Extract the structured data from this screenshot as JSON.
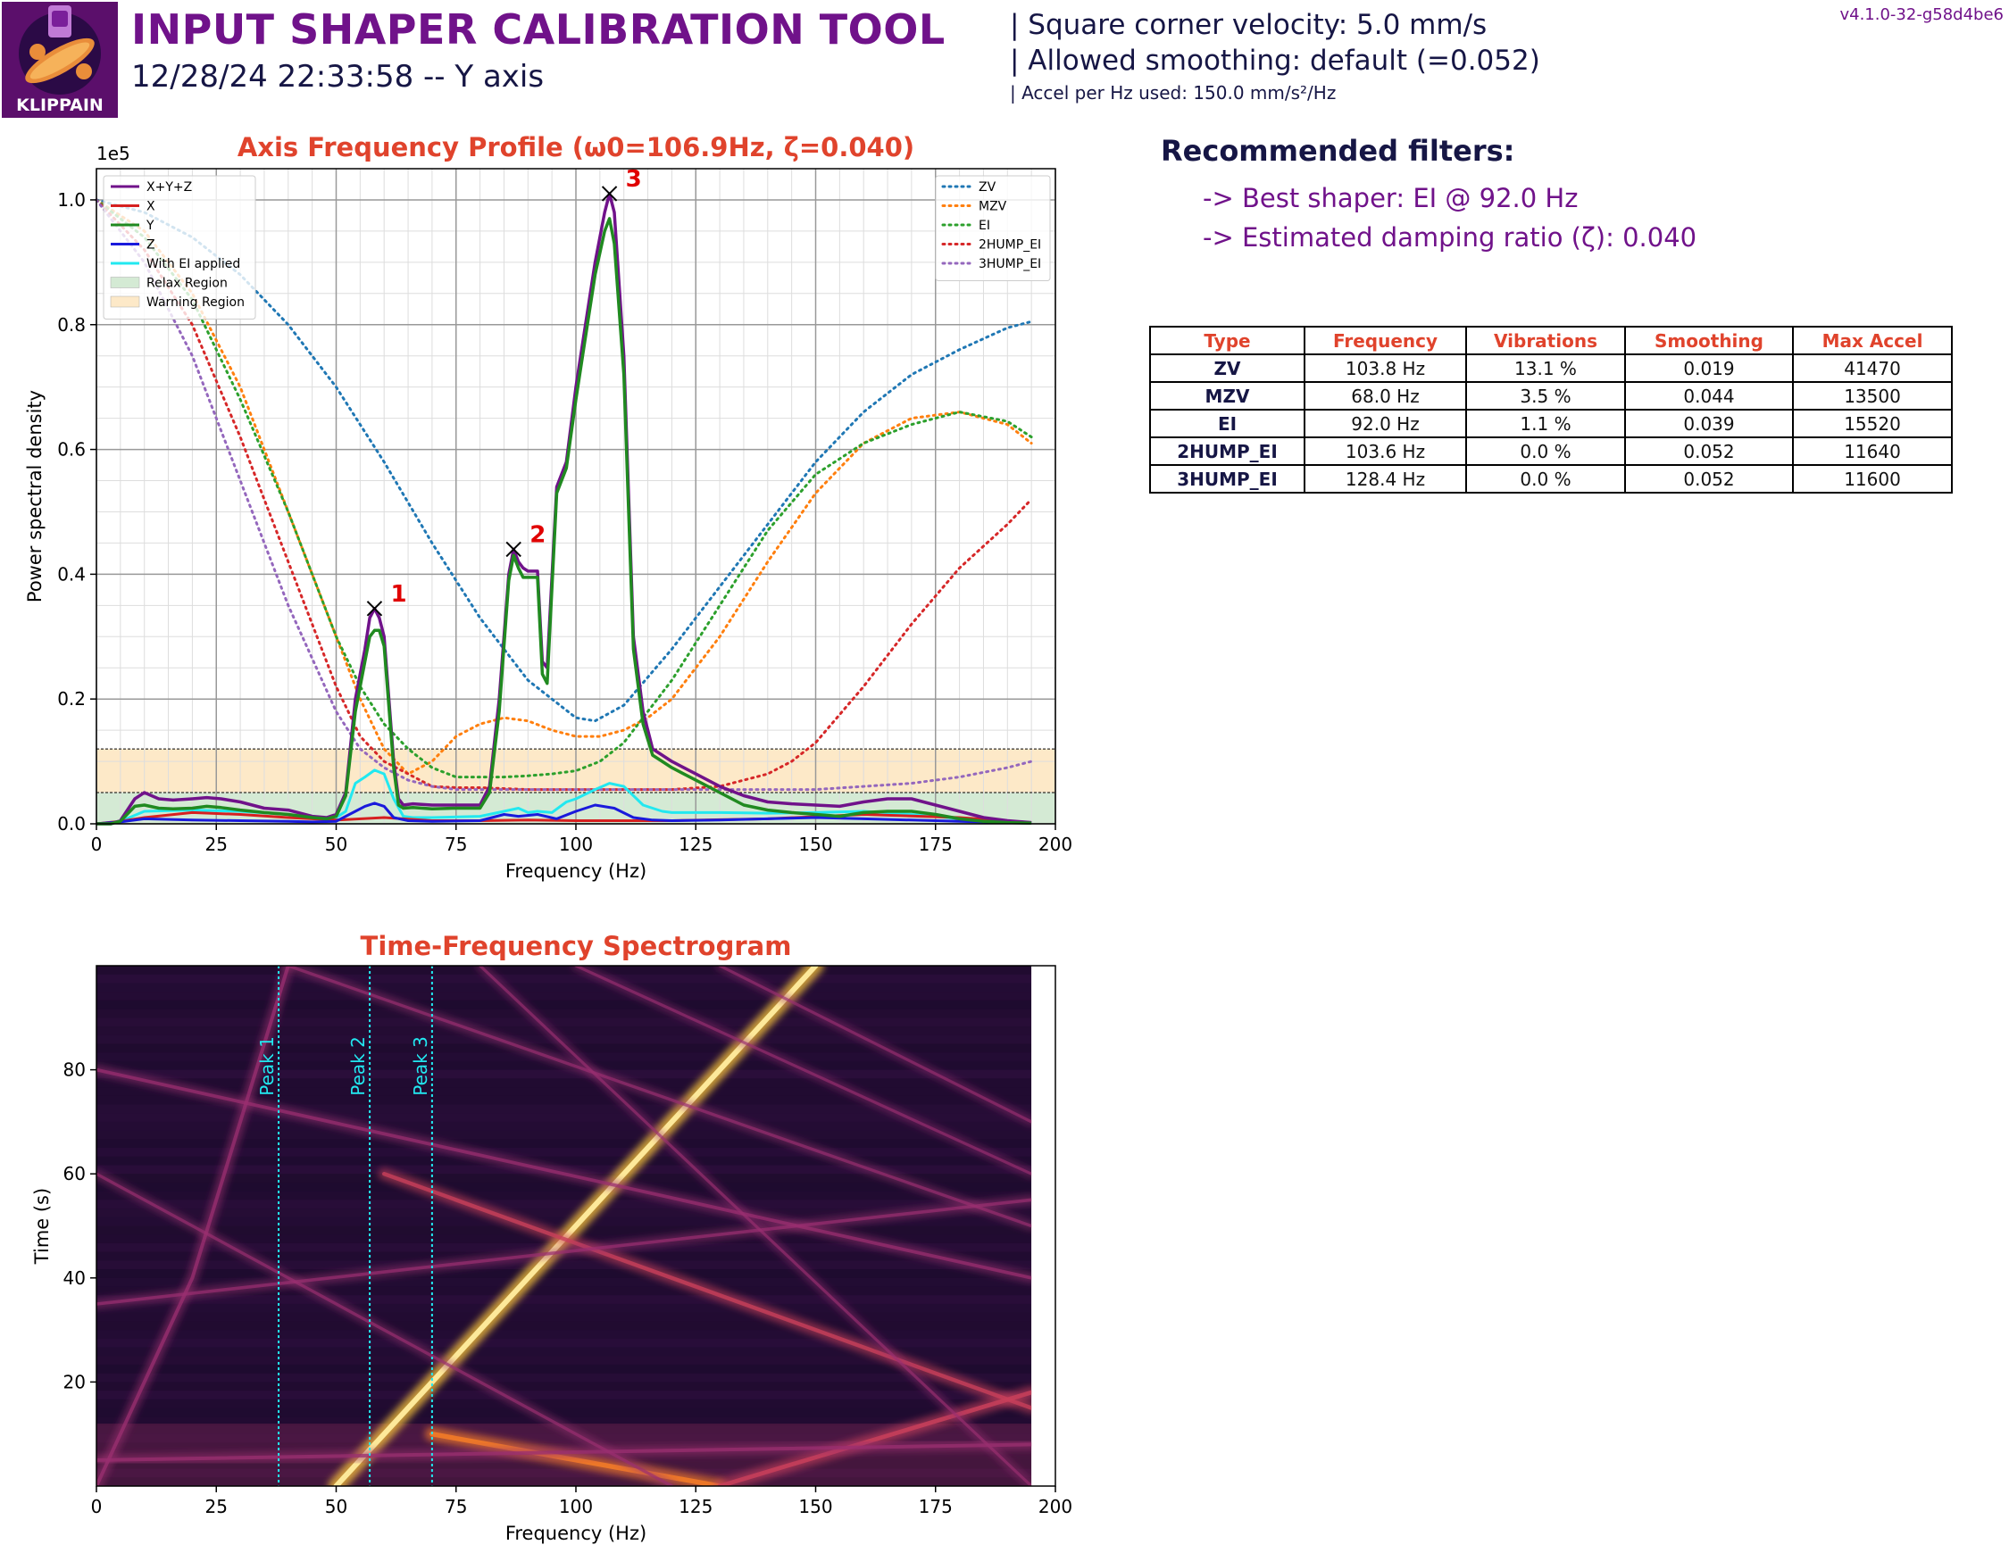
{
  "header": {
    "title": "INPUT SHAPER CALIBRATION TOOL",
    "subtitle": "12/28/24 22:33:58 -- Y axis",
    "logo_text": "KLIPPAIN",
    "info_velocity": "| Square corner velocity: 5.0 mm/s",
    "info_smoothing": "| Allowed smoothing: default (=0.052)",
    "info_accel": "| Accel per Hz used: 150.0 mm/s²/Hz",
    "version": "v4.1.0-32-g58d4be6"
  },
  "recommendations": {
    "title": "Recommended filters:",
    "best_shaper": "-> Best shaper: EI @ 92.0 Hz",
    "damping": "-> Estimated damping ratio (ζ): 0.040"
  },
  "filters_table": {
    "headers": [
      "Type",
      "Frequency",
      "Vibrations",
      "Smoothing",
      "Max Accel"
    ],
    "rows": [
      [
        "ZV",
        "103.8 Hz",
        "13.1 %",
        "0.019",
        "41470"
      ],
      [
        "MZV",
        "68.0 Hz",
        "3.5 %",
        "0.044",
        "13500"
      ],
      [
        "EI",
        "92.0 Hz",
        "1.1 %",
        "0.039",
        "15520"
      ],
      [
        "2HUMP_EI",
        "103.6 Hz",
        "0.0 %",
        "0.052",
        "11640"
      ],
      [
        "3HUMP_EI",
        "128.4 Hz",
        "0.0 %",
        "0.052",
        "11600"
      ]
    ]
  },
  "chart_data": [
    {
      "type": "line",
      "title": "Axis Frequency Profile (ω0=106.9Hz, ζ=0.040)",
      "xlabel": "Frequency (Hz)",
      "ylabel": "Power spectral density",
      "y_scale_label": "1e5",
      "xlim": [
        0,
        200
      ],
      "ylim": [
        0,
        1.05
      ],
      "x_ticks": [
        "0",
        "25",
        "50",
        "75",
        "100",
        "125",
        "150",
        "175",
        "200"
      ],
      "y_ticks": [
        "0.0",
        "0.2",
        "0.4",
        "0.6",
        "0.8",
        "1.0"
      ],
      "grid": true,
      "legend_left_position": "top-left",
      "legend_right_position": "top-right",
      "regions": [
        {
          "name": "Relax Region",
          "y0": 0,
          "y1": 0.05,
          "color": "#d4ead4"
        },
        {
          "name": "Warning Region",
          "y0": 0.05,
          "y1": 0.12,
          "color": "#fde9c8"
        }
      ],
      "psd_series": [
        {
          "name": "X+Y+Z",
          "color": "#70128a",
          "x": [
            0,
            3,
            5,
            8,
            10,
            13,
            16,
            20,
            23,
            26,
            30,
            35,
            40,
            45,
            48,
            50,
            52,
            54,
            56,
            57,
            58,
            59,
            60,
            62,
            63,
            64,
            66,
            70,
            75,
            80,
            82,
            84,
            86,
            87,
            88,
            89,
            90,
            92,
            93,
            94,
            96,
            98,
            100,
            102,
            104,
            106,
            107,
            108,
            110,
            112,
            114,
            116,
            118,
            120,
            125,
            130,
            135,
            140,
            145,
            150,
            155,
            160,
            165,
            170,
            175,
            180,
            185,
            190,
            195
          ],
          "y": [
            0,
            0,
            0.005,
            0.04,
            0.05,
            0.04,
            0.038,
            0.04,
            0.042,
            0.04,
            0.035,
            0.025,
            0.022,
            0.012,
            0.01,
            0.015,
            0.05,
            0.2,
            0.28,
            0.33,
            0.345,
            0.33,
            0.3,
            0.1,
            0.04,
            0.03,
            0.032,
            0.03,
            0.03,
            0.03,
            0.06,
            0.2,
            0.4,
            0.44,
            0.42,
            0.41,
            0.405,
            0.405,
            0.26,
            0.25,
            0.54,
            0.58,
            0.7,
            0.8,
            0.9,
            0.98,
            1.01,
            0.98,
            0.75,
            0.3,
            0.18,
            0.12,
            0.11,
            0.1,
            0.08,
            0.06,
            0.045,
            0.035,
            0.032,
            0.03,
            0.028,
            0.035,
            0.04,
            0.04,
            0.03,
            0.02,
            0.01,
            0.005,
            0.002
          ]
        },
        {
          "name": "X",
          "color": "#d62020",
          "x": [
            0,
            5,
            10,
            20,
            30,
            40,
            50,
            60,
            70,
            80,
            90,
            100,
            110,
            120,
            140,
            160,
            180,
            195
          ],
          "y": [
            0,
            0.004,
            0.01,
            0.018,
            0.015,
            0.01,
            0.006,
            0.01,
            0.005,
            0.005,
            0.006,
            0.005,
            0.005,
            0.005,
            0.008,
            0.015,
            0.01,
            0.002
          ]
        },
        {
          "name": "Y",
          "color": "#208a20",
          "x": [
            0,
            3,
            5,
            8,
            10,
            13,
            16,
            20,
            23,
            26,
            30,
            35,
            40,
            45,
            48,
            50,
            52,
            54,
            56,
            57,
            58,
            59,
            60,
            62,
            63,
            64,
            66,
            70,
            75,
            80,
            82,
            84,
            86,
            87,
            88,
            89,
            90,
            92,
            93,
            94,
            96,
            98,
            100,
            102,
            104,
            106,
            107,
            108,
            110,
            112,
            114,
            116,
            118,
            120,
            125,
            130,
            135,
            140,
            145,
            150,
            155,
            160,
            165,
            170,
            175,
            180,
            185,
            190,
            195
          ],
          "y": [
            0,
            0,
            0.004,
            0.028,
            0.03,
            0.025,
            0.024,
            0.025,
            0.028,
            0.026,
            0.022,
            0.018,
            0.015,
            0.01,
            0.008,
            0.012,
            0.045,
            0.18,
            0.26,
            0.3,
            0.31,
            0.31,
            0.285,
            0.09,
            0.03,
            0.025,
            0.026,
            0.024,
            0.025,
            0.025,
            0.05,
            0.18,
            0.39,
            0.43,
            0.41,
            0.395,
            0.395,
            0.395,
            0.24,
            0.225,
            0.53,
            0.57,
            0.68,
            0.78,
            0.88,
            0.95,
            0.97,
            0.93,
            0.72,
            0.28,
            0.16,
            0.11,
            0.1,
            0.09,
            0.07,
            0.05,
            0.03,
            0.022,
            0.018,
            0.015,
            0.012,
            0.018,
            0.02,
            0.02,
            0.015,
            0.008,
            0.004,
            0.002,
            0.001
          ]
        },
        {
          "name": "Z",
          "color": "#1a1adc",
          "x": [
            0,
            5,
            10,
            20,
            30,
            40,
            45,
            50,
            54,
            56,
            58,
            60,
            62,
            65,
            70,
            80,
            85,
            88,
            92,
            96,
            100,
            104,
            108,
            112,
            116,
            120,
            130,
            140,
            150,
            160,
            170,
            180,
            195
          ],
          "y": [
            0,
            0.003,
            0.008,
            0.006,
            0.005,
            0.004,
            0.003,
            0.004,
            0.02,
            0.028,
            0.033,
            0.028,
            0.01,
            0.005,
            0.004,
            0.005,
            0.015,
            0.012,
            0.015,
            0.008,
            0.02,
            0.03,
            0.025,
            0.01,
            0.006,
            0.005,
            0.006,
            0.008,
            0.01,
            0.008,
            0.006,
            0.004,
            0.001
          ]
        },
        {
          "name": "With EI applied",
          "color": "#22e8f0",
          "x": [
            0,
            5,
            10,
            20,
            30,
            40,
            45,
            50,
            52,
            54,
            56,
            58,
            60,
            62,
            64,
            66,
            70,
            80,
            85,
            88,
            90,
            92,
            95,
            98,
            100,
            104,
            107,
            110,
            114,
            118,
            120,
            130,
            140,
            150,
            160,
            170,
            180,
            195
          ],
          "y": [
            0,
            0.004,
            0.02,
            0.022,
            0.02,
            0.015,
            0.01,
            0.01,
            0.02,
            0.065,
            0.075,
            0.086,
            0.08,
            0.04,
            0.012,
            0.01,
            0.01,
            0.012,
            0.02,
            0.025,
            0.018,
            0.02,
            0.018,
            0.035,
            0.04,
            0.055,
            0.065,
            0.06,
            0.03,
            0.02,
            0.018,
            0.018,
            0.017,
            0.018,
            0.02,
            0.015,
            0.008,
            0.002
          ]
        }
      ],
      "shaper_series": [
        {
          "name": "ZV",
          "color": "#1f77b4",
          "x": [
            0,
            10,
            20,
            30,
            40,
            50,
            60,
            70,
            80,
            90,
            100,
            104,
            110,
            120,
            130,
            140,
            150,
            160,
            170,
            180,
            190,
            195
          ],
          "y": [
            1.0,
            0.98,
            0.94,
            0.88,
            0.8,
            0.7,
            0.58,
            0.45,
            0.33,
            0.23,
            0.17,
            0.165,
            0.19,
            0.28,
            0.38,
            0.48,
            0.58,
            0.66,
            0.72,
            0.76,
            0.795,
            0.805
          ]
        },
        {
          "name": "MZV",
          "color": "#ff7f0e",
          "x": [
            0,
            10,
            20,
            30,
            40,
            50,
            55,
            60,
            65,
            70,
            75,
            80,
            85,
            90,
            95,
            100,
            105,
            110,
            115,
            120,
            130,
            140,
            150,
            160,
            170,
            180,
            190,
            195
          ],
          "y": [
            1.0,
            0.95,
            0.85,
            0.7,
            0.5,
            0.3,
            0.2,
            0.12,
            0.08,
            0.1,
            0.14,
            0.16,
            0.17,
            0.165,
            0.15,
            0.14,
            0.14,
            0.15,
            0.17,
            0.2,
            0.3,
            0.42,
            0.53,
            0.61,
            0.65,
            0.66,
            0.64,
            0.61
          ]
        },
        {
          "name": "EI",
          "color": "#2ca02c",
          "x": [
            0,
            10,
            20,
            30,
            40,
            50,
            55,
            60,
            65,
            70,
            75,
            80,
            85,
            90,
            95,
            100,
            105,
            110,
            115,
            120,
            130,
            140,
            150,
            160,
            170,
            180,
            190,
            195
          ],
          "y": [
            1.0,
            0.94,
            0.84,
            0.68,
            0.5,
            0.3,
            0.22,
            0.16,
            0.12,
            0.09,
            0.075,
            0.075,
            0.075,
            0.077,
            0.08,
            0.085,
            0.1,
            0.13,
            0.18,
            0.23,
            0.35,
            0.47,
            0.56,
            0.61,
            0.64,
            0.66,
            0.645,
            0.62
          ]
        },
        {
          "name": "2HUMP_EI",
          "color": "#d62728",
          "x": [
            0,
            10,
            20,
            30,
            40,
            50,
            55,
            60,
            65,
            70,
            75,
            80,
            90,
            100,
            110,
            120,
            130,
            140,
            145,
            150,
            160,
            170,
            180,
            190,
            195
          ],
          "y": [
            1.0,
            0.92,
            0.8,
            0.62,
            0.42,
            0.22,
            0.14,
            0.1,
            0.08,
            0.06,
            0.058,
            0.058,
            0.055,
            0.055,
            0.055,
            0.055,
            0.06,
            0.08,
            0.1,
            0.13,
            0.22,
            0.32,
            0.41,
            0.48,
            0.52
          ]
        },
        {
          "name": "3HUMP_EI",
          "color": "#9467bd",
          "x": [
            0,
            10,
            20,
            30,
            40,
            50,
            55,
            60,
            65,
            70,
            75,
            80,
            90,
            100,
            110,
            120,
            130,
            140,
            150,
            160,
            170,
            180,
            190,
            195
          ],
          "y": [
            1.0,
            0.9,
            0.75,
            0.55,
            0.35,
            0.18,
            0.12,
            0.09,
            0.07,
            0.06,
            0.055,
            0.055,
            0.055,
            0.055,
            0.055,
            0.055,
            0.055,
            0.055,
            0.055,
            0.06,
            0.065,
            0.075,
            0.09,
            0.1
          ]
        }
      ],
      "threshold_lines": [
        0.05,
        0.12
      ],
      "peaks": [
        {
          "label": "1",
          "x": 58,
          "y": 0.345
        },
        {
          "label": "2",
          "x": 87,
          "y": 0.44
        },
        {
          "label": "3",
          "x": 107,
          "y": 1.01
        }
      ]
    },
    {
      "type": "heatmap",
      "title": "Time-Frequency Spectrogram",
      "xlabel": "Frequency (Hz)",
      "ylabel": "Time (s)",
      "xlim": [
        0,
        200
      ],
      "ylim": [
        0,
        100
      ],
      "data_xmax": 195,
      "x_ticks": [
        "0",
        "25",
        "50",
        "75",
        "100",
        "125",
        "150",
        "175",
        "200"
      ],
      "y_ticks": [
        "20",
        "40",
        "60",
        "80"
      ],
      "colormap": "inferno",
      "peak_markers": [
        {
          "label": "Peak 1",
          "x": 38
        },
        {
          "label": "Peak 2",
          "x": 57
        },
        {
          "label": "Peak 3",
          "x": 70
        }
      ],
      "ridges": [
        {
          "points": [
            [
              50,
              0
            ],
            [
              150,
              100
            ]
          ],
          "intensity": 1.0
        },
        {
          "points": [
            [
              0,
              0
            ],
            [
              20,
              40
            ],
            [
              40,
              100
            ]
          ],
          "intensity": 0.5
        },
        {
          "points": [
            [
              0,
              80
            ],
            [
              195,
              40
            ]
          ],
          "intensity": 0.45
        },
        {
          "points": [
            [
              60,
              60
            ],
            [
              195,
              15
            ]
          ],
          "intensity": 0.6
        },
        {
          "points": [
            [
              0,
              35
            ],
            [
              195,
              55
            ]
          ],
          "intensity": 0.4
        },
        {
          "points": [
            [
              70,
              10
            ],
            [
              130,
              0
            ]
          ],
          "intensity": 0.85
        },
        {
          "points": [
            [
              130,
              0
            ],
            [
              195,
              18
            ]
          ],
          "intensity": 0.7
        },
        {
          "points": [
            [
              0,
              60
            ],
            [
              120,
              0
            ]
          ],
          "intensity": 0.35
        },
        {
          "points": [
            [
              40,
              100
            ],
            [
              195,
              50
            ]
          ],
          "intensity": 0.35
        },
        {
          "points": [
            [
              100,
              100
            ],
            [
              195,
              60
            ]
          ],
          "intensity": 0.3
        },
        {
          "points": [
            [
              80,
              100
            ],
            [
              195,
              0
            ]
          ],
          "intensity": 0.3
        },
        {
          "points": [
            [
              0,
              5
            ],
            [
              195,
              8
            ]
          ],
          "intensity": 0.5
        },
        {
          "points": [
            [
              130,
              100
            ],
            [
              195,
              70
            ]
          ],
          "intensity": 0.3
        }
      ]
    }
  ]
}
